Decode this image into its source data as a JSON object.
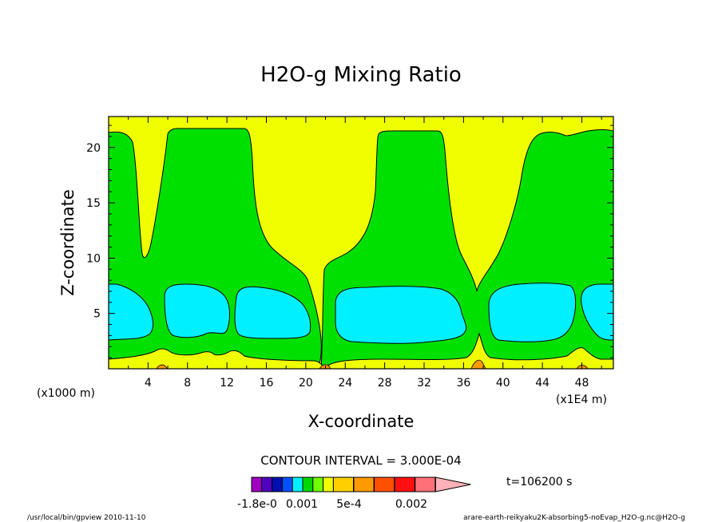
{
  "chart_data": {
    "type": "contour",
    "title": "H2O-g Mixing Ratio",
    "xlabel": "X-coordinate",
    "ylabel": "Z-coordinate",
    "y_unit_note": "(x1000 m)",
    "x_unit_note": "(x1E4 m)",
    "xlim": [
      0,
      51.2
    ],
    "ylim": [
      0,
      22.8
    ],
    "xticks": [
      4,
      8,
      12,
      16,
      20,
      24,
      28,
      32,
      36,
      40,
      44,
      48
    ],
    "yticks": [
      5,
      10,
      15,
      20
    ],
    "contour_interval_label": "CONTOUR INTERVAL = 3.000E-04",
    "time_label": "t=106200 s",
    "colorbar_labels": [
      "-1.8e-0",
      "0.001",
      "5e-4",
      "0.002"
    ],
    "levels": [
      {
        "name": "background",
        "color": "#f0ff00"
      },
      {
        "name": "green",
        "color": "#00e000"
      },
      {
        "name": "cyan",
        "color": "#00f0ff"
      },
      {
        "name": "orange",
        "color": "#ff9a00"
      }
    ],
    "colorbar_colors": [
      "#a000c0",
      "#5000c0",
      "#0010b0",
      "#0050ff",
      "#00f0ff",
      "#00d800",
      "#70ff00",
      "#f0ff00",
      "#ffd000",
      "#ff9a00",
      "#ff5000",
      "#ff1010",
      "#ff7078",
      "#ffb0b8"
    ],
    "grid": false
  },
  "footer": {
    "left": "/usr/local/bin/gpview  2010-11-10",
    "right": "arare-earth-reikyaku2K-absorbing5-noEvap_H2O-g.nc@H2O-g"
  }
}
